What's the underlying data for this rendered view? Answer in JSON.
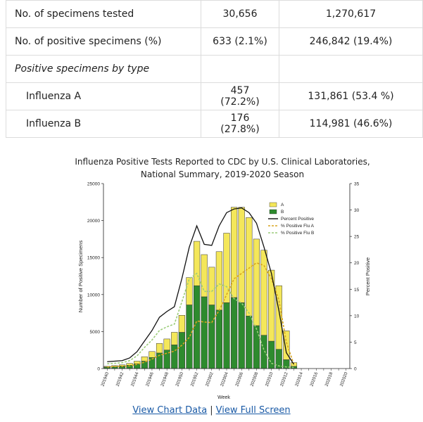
{
  "table": {
    "rows": [
      {
        "label": "No. of specimens tested",
        "v1": "30,656",
        "v2": "1,270,617"
      },
      {
        "label": "No. of positive specimens (%)",
        "v1": "633 (2.1%)",
        "v2": "246,842 (19.4%)"
      },
      {
        "label": "Positive specimens by type",
        "v1": "",
        "v2": ""
      },
      {
        "label": "Influenza A",
        "v1": "457 (72.2%)",
        "v2": "131,861 (53.4 %)"
      },
      {
        "label": "Influenza B",
        "v1": "176 (27.8%)",
        "v2": "114,981 (46.6%)"
      }
    ]
  },
  "links": {
    "chart_data": "View Chart Data",
    "separator": "|",
    "full_screen": "View Full Screen"
  },
  "chart_data": {
    "type": "bar",
    "title": "Influenza Positive Tests Reported to CDC by U.S. Clinical Laboratories,",
    "subtitle": "National Summary, 2019-2020 Season",
    "xlabel": "Week",
    "ylabel": "Number of Positive Specimens",
    "y2label": "Percent Positive",
    "ylim": [
      0,
      25000
    ],
    "y2lim": [
      0,
      35
    ],
    "yticks": [
      0,
      5000,
      10000,
      15000,
      20000,
      25000
    ],
    "y2ticks": [
      0,
      5,
      10,
      15,
      20,
      25,
      30,
      35
    ],
    "xtick_labels": [
      "201940",
      "201942",
      "201944",
      "201946",
      "201948",
      "201950",
      "201952",
      "202002",
      "202004",
      "202006",
      "202008",
      "202010",
      "202012",
      "202014",
      "202016",
      "202018",
      "202020"
    ],
    "weeks": [
      "201940",
      "201941",
      "201942",
      "201943",
      "201944",
      "201945",
      "201946",
      "201947",
      "201948",
      "201949",
      "201950",
      "201951",
      "201952",
      "202001",
      "202002",
      "202003",
      "202004",
      "202005",
      "202006",
      "202007",
      "202008",
      "202009",
      "202010",
      "202011",
      "202012",
      "202013",
      "202014",
      "202015",
      "202016",
      "202017",
      "202018",
      "202019",
      "202020"
    ],
    "colors": {
      "A": "#f4e75a",
      "B": "#2e8b2e",
      "bar_border": "#333333",
      "percent": "#111111",
      "pctA": "#d9a520",
      "pctB": "#9ccc7a"
    },
    "series": [
      {
        "name": "B",
        "type": "bar",
        "values": [
          200,
          250,
          350,
          450,
          650,
          1000,
          1500,
          2100,
          2500,
          3200,
          4900,
          8600,
          11200,
          9700,
          8600,
          7900,
          8900,
          9600,
          8900,
          7100,
          5800,
          4500,
          3700,
          2600,
          1200,
          300,
          0,
          0,
          0,
          0,
          0,
          0,
          0
        ]
      },
      {
        "name": "A",
        "type": "bar",
        "values": [
          100,
          150,
          150,
          250,
          350,
          600,
          800,
          1300,
          1500,
          1700,
          2300,
          3700,
          6000,
          5700,
          5100,
          7900,
          9400,
          12200,
          12900,
          13300,
          11700,
          11500,
          9600,
          8600,
          3900,
          500,
          0,
          0,
          0,
          0,
          0,
          0,
          0
        ]
      },
      {
        "name": "Percent Positive",
        "type": "line",
        "axis": "right",
        "values": [
          1.3,
          1.4,
          1.5,
          2.0,
          3.2,
          5.2,
          7.2,
          9.7,
          10.8,
          11.7,
          17.0,
          23.0,
          27.0,
          23.5,
          23.3,
          27.0,
          29.5,
          30.2,
          30.4,
          29.5,
          27.5,
          23.0,
          18.0,
          11.0,
          3.0,
          0.8,
          null,
          null,
          null,
          null,
          null,
          null,
          null
        ]
      },
      {
        "name": "% Positive Flu A",
        "type": "line",
        "axis": "right",
        "values": [
          0.3,
          0.4,
          0.4,
          0.5,
          0.8,
          1.2,
          1.8,
          2.5,
          2.9,
          3.3,
          4.4,
          5.9,
          9.0,
          8.8,
          8.7,
          11.0,
          14.0,
          17.0,
          18.0,
          19.0,
          20.0,
          19.5,
          17.0,
          13.0,
          5.0,
          0.8,
          null,
          null,
          null,
          null,
          null,
          null,
          null
        ]
      },
      {
        "name": "% Positive Flu B",
        "type": "line",
        "axis": "right",
        "values": [
          0.9,
          1.0,
          1.1,
          1.5,
          2.4,
          4.0,
          5.4,
          7.2,
          7.9,
          8.4,
          12.6,
          17.0,
          18.0,
          14.6,
          14.6,
          16.0,
          15.5,
          13.2,
          12.4,
          10.5,
          7.5,
          3.5,
          1.0,
          0.5,
          0.3,
          0.2,
          null,
          null,
          null,
          null,
          null,
          null,
          null
        ]
      }
    ],
    "legend": {
      "position": "top-right",
      "entries": [
        "A",
        "B",
        "Percent Positive",
        "% Positive Flu A",
        "% Positive Flu B"
      ]
    }
  }
}
